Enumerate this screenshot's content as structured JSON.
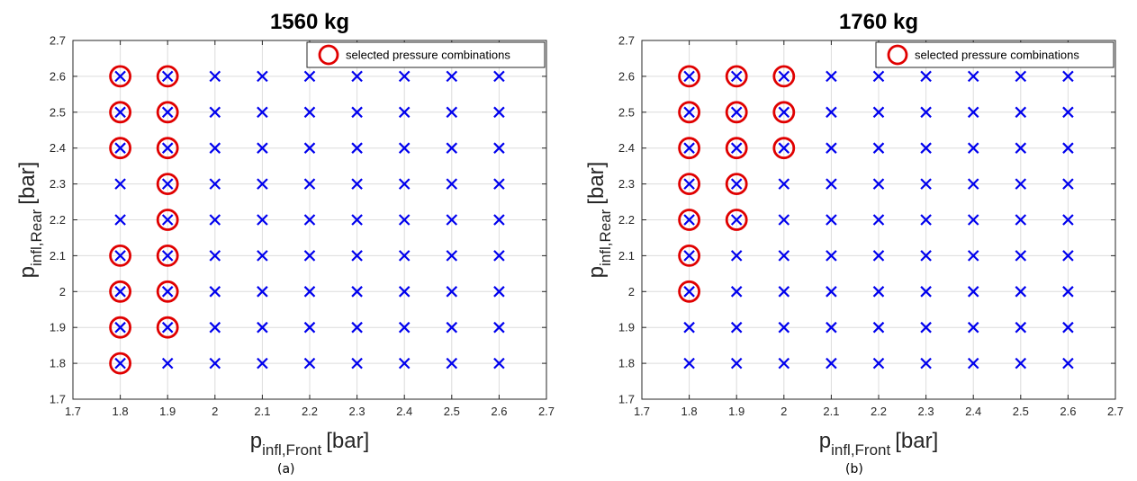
{
  "colors": {
    "grid_marker": "#0000ee",
    "selected_marker": "#e00000",
    "grid_line": "#dcdcdc",
    "axis": "#262626"
  },
  "legend_label": "selected pressure combinations",
  "captions": [
    "(a)",
    "(b)"
  ],
  "chart_data": [
    {
      "type": "scatter",
      "title": "1560 kg",
      "xlabel": {
        "base": "p",
        "sub": "infl,Front",
        "unit": "[bar]"
      },
      "ylabel": {
        "base": "p",
        "sub": "infl,Rear",
        "unit": "[bar]"
      },
      "xlim": [
        1.7,
        2.7
      ],
      "ylim": [
        1.7,
        2.7
      ],
      "xticks": [
        "1.7",
        "1.8",
        "1.9",
        "2",
        "2.1",
        "2.2",
        "2.3",
        "2.4",
        "2.5",
        "2.6",
        "2.7"
      ],
      "yticks": [
        "1.7",
        "1.8",
        "1.9",
        "2",
        "2.1",
        "2.2",
        "2.3",
        "2.4",
        "2.5",
        "2.6",
        "2.7"
      ],
      "grid": true,
      "legend": {
        "position": "top-right",
        "entries": [
          "selected pressure combinations"
        ]
      },
      "series": [
        {
          "marker": "x",
          "x_values": [
            1.8,
            1.9,
            2.0,
            2.1,
            2.2,
            2.3,
            2.4,
            2.5,
            2.6
          ],
          "y_values": [
            1.8,
            1.9,
            2.0,
            2.1,
            2.2,
            2.3,
            2.4,
            2.5,
            2.6
          ]
        },
        {
          "name": "selected pressure combinations",
          "marker": "o",
          "points": [
            [
              1.8,
              1.8
            ],
            [
              1.8,
              1.9
            ],
            [
              1.8,
              2.0
            ],
            [
              1.8,
              2.1
            ],
            [
              1.8,
              2.4
            ],
            [
              1.8,
              2.5
            ],
            [
              1.8,
              2.6
            ],
            [
              1.9,
              1.9
            ],
            [
              1.9,
              2.0
            ],
            [
              1.9,
              2.1
            ],
            [
              1.9,
              2.2
            ],
            [
              1.9,
              2.3
            ],
            [
              1.9,
              2.4
            ],
            [
              1.9,
              2.5
            ],
            [
              1.9,
              2.6
            ]
          ]
        }
      ]
    },
    {
      "type": "scatter",
      "title": "1760 kg",
      "xlabel": {
        "base": "p",
        "sub": "infl,Front",
        "unit": "[bar]"
      },
      "ylabel": {
        "base": "p",
        "sub": "infl,Rear",
        "unit": "[bar]"
      },
      "xlim": [
        1.7,
        2.7
      ],
      "ylim": [
        1.7,
        2.7
      ],
      "xticks": [
        "1.7",
        "1.8",
        "1.9",
        "2",
        "2.1",
        "2.2",
        "2.3",
        "2.4",
        "2.5",
        "2.6",
        "2.7"
      ],
      "yticks": [
        "1.7",
        "1.8",
        "1.9",
        "2",
        "2.1",
        "2.2",
        "2.3",
        "2.4",
        "2.5",
        "2.6",
        "2.7"
      ],
      "grid": true,
      "legend": {
        "position": "top-right",
        "entries": [
          "selected pressure combinations"
        ]
      },
      "series": [
        {
          "marker": "x",
          "x_values": [
            1.8,
            1.9,
            2.0,
            2.1,
            2.2,
            2.3,
            2.4,
            2.5,
            2.6
          ],
          "y_values": [
            1.8,
            1.9,
            2.0,
            2.1,
            2.2,
            2.3,
            2.4,
            2.5,
            2.6
          ]
        },
        {
          "name": "selected pressure combinations",
          "marker": "o",
          "points": [
            [
              1.8,
              2.0
            ],
            [
              1.8,
              2.1
            ],
            [
              1.8,
              2.2
            ],
            [
              1.8,
              2.3
            ],
            [
              1.8,
              2.4
            ],
            [
              1.8,
              2.5
            ],
            [
              1.8,
              2.6
            ],
            [
              1.9,
              2.2
            ],
            [
              1.9,
              2.3
            ],
            [
              1.9,
              2.4
            ],
            [
              1.9,
              2.5
            ],
            [
              1.9,
              2.6
            ],
            [
              2.0,
              2.4
            ],
            [
              2.0,
              2.5
            ],
            [
              2.0,
              2.6
            ]
          ]
        }
      ]
    }
  ]
}
